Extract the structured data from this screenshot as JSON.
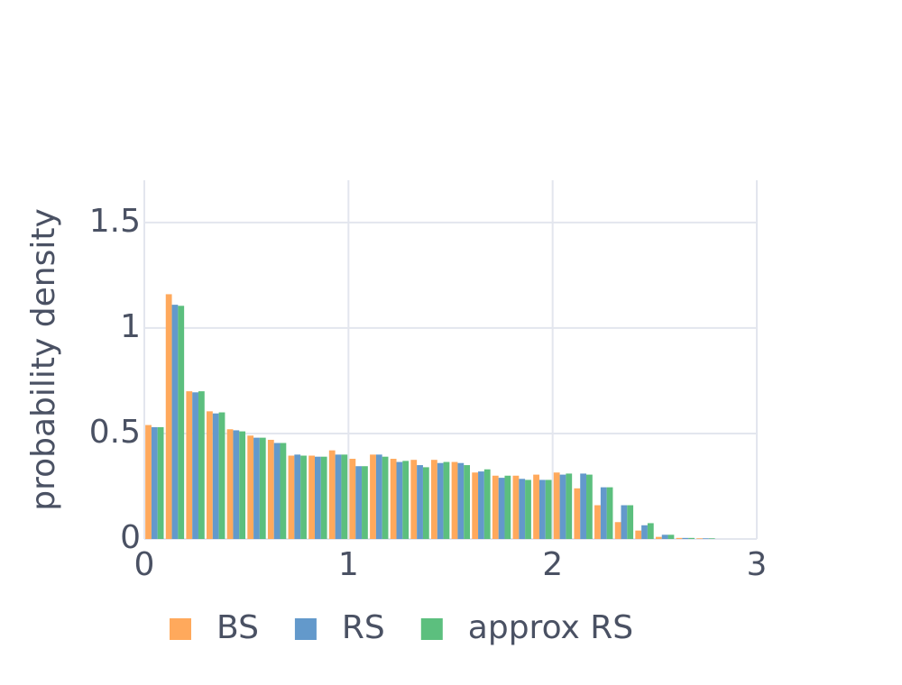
{
  "chart_data": {
    "type": "histogram",
    "bins": [
      0,
      0.1,
      0.2,
      0.3,
      0.4,
      0.5,
      0.6,
      0.7,
      0.8,
      0.9,
      1,
      1.1,
      1.2,
      1.3,
      1.4,
      1.5,
      1.6,
      1.7,
      1.8,
      1.9,
      2,
      2.1,
      2.2,
      2.3,
      2.4,
      2.5,
      2.6,
      2.7,
      2.8,
      2.9,
      3
    ],
    "series": [
      {
        "name": "BS",
        "color": "#ffa95c",
        "values": [
          0.54,
          1.16,
          0.7,
          0.605,
          0.52,
          0.49,
          0.47,
          0.395,
          0.395,
          0.42,
          0.38,
          0.4,
          0.38,
          0.375,
          0.375,
          0.365,
          0.315,
          0.3,
          0.3,
          0.305,
          0.315,
          0.24,
          0.16,
          0.08,
          0.04,
          0.01,
          0.005,
          0.003,
          0,
          0
        ]
      },
      {
        "name": "RS",
        "color": "#6399cb",
        "values": [
          0.53,
          1.11,
          0.695,
          0.595,
          0.515,
          0.48,
          0.455,
          0.4,
          0.39,
          0.4,
          0.345,
          0.4,
          0.365,
          0.35,
          0.36,
          0.36,
          0.32,
          0.29,
          0.285,
          0.28,
          0.305,
          0.31,
          0.245,
          0.16,
          0.065,
          0.02,
          0.005,
          0.003,
          0,
          0
        ]
      },
      {
        "name": "approx RS",
        "color": "#5cbf7e",
        "values": [
          0.53,
          1.105,
          0.7,
          0.6,
          0.51,
          0.48,
          0.455,
          0.395,
          0.39,
          0.4,
          0.345,
          0.39,
          0.37,
          0.34,
          0.365,
          0.35,
          0.33,
          0.3,
          0.28,
          0.28,
          0.31,
          0.305,
          0.245,
          0.16,
          0.075,
          0.02,
          0.005,
          0.003,
          0,
          0
        ]
      }
    ],
    "y_label": "probability density",
    "xlim": [
      0,
      3
    ],
    "xticks": [
      0,
      1,
      2,
      3
    ],
    "ylim": [
      0,
      1.7
    ],
    "yticks": [
      0,
      0.5,
      1,
      1.5
    ],
    "grid": true,
    "legend": "bottom"
  }
}
